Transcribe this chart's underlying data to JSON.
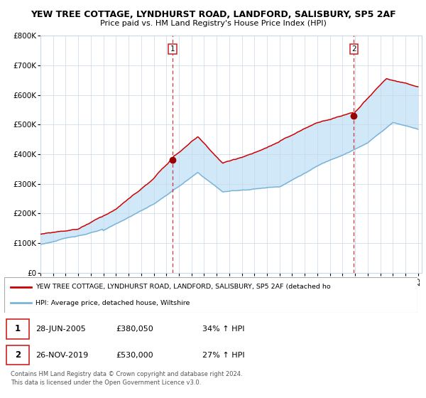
{
  "title_line1": "YEW TREE COTTAGE, LYNDHURST ROAD, LANDFORD, SALISBURY, SP5 2AF",
  "title_line2": "Price paid vs. HM Land Registry's House Price Index (HPI)",
  "ylim": [
    0,
    800000
  ],
  "yticks": [
    0,
    100000,
    200000,
    300000,
    400000,
    500000,
    600000,
    700000,
    800000
  ],
  "ytick_labels": [
    "£0",
    "£100K",
    "£200K",
    "£300K",
    "£400K",
    "£500K",
    "£600K",
    "£700K",
    "£800K"
  ],
  "hpi_color": "#7ab4d8",
  "property_color": "#cc0000",
  "fill_color": "#d0e8f8",
  "grid_color": "#c8d8e8",
  "sale1_date": 2005.49,
  "sale1_price": 380050,
  "sale2_date": 2019.9,
  "sale2_price": 530000,
  "legend_property": "YEW TREE COTTAGE, LYNDHURST ROAD, LANDFORD, SALISBURY, SP5 2AF (detached ho",
  "legend_hpi": "HPI: Average price, detached house, Wiltshire",
  "note1_label": "1",
  "note1_date": "28-JUN-2005",
  "note1_price": "£380,050",
  "note1_hpi": "34% ↑ HPI",
  "note2_label": "2",
  "note2_date": "26-NOV-2019",
  "note2_price": "£530,000",
  "note2_hpi": "27% ↑ HPI",
  "footer": "Contains HM Land Registry data © Crown copyright and database right 2024.\nThis data is licensed under the Open Government Licence v3.0."
}
